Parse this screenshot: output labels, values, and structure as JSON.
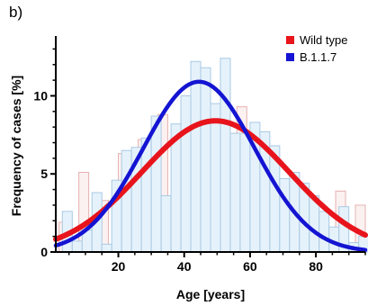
{
  "panel_label": "b)",
  "chart_data": {
    "type": "bar",
    "title": "",
    "xlabel": "Age [years]",
    "ylabel": "Frequency of cases [%]",
    "xlim": [
      1,
      95
    ],
    "ylim": [
      0,
      13.6
    ],
    "xticks": [
      20,
      40,
      60,
      80
    ],
    "yticks": [
      0,
      5,
      10
    ],
    "legend_position": "top-right",
    "bin_width": 3,
    "series": [
      {
        "name": "Wild type",
        "color": "#e8141c",
        "bar_fill": "#fbf1f1",
        "bar_stroke": "#e7b1b1",
        "bin_centers": [
          3.5,
          9.5,
          15.5,
          21.5,
          27.5,
          33.5,
          39.5,
          45.5,
          51.5,
          57.5,
          63.5,
          69.5,
          75.5,
          81.5,
          87.5,
          93.5
        ],
        "values": [
          1.9,
          5.1,
          3.3,
          6.3,
          7.2,
          8.8,
          7.5,
          9.3,
          6.7,
          9.3,
          4.3,
          4.3,
          4.0,
          0.9,
          3.9,
          3.0
        ],
        "fit": {
          "mu": 49.5,
          "sigma": 22.5,
          "amplitude": 8.4
        }
      },
      {
        "name": "B.1.1.7",
        "color": "#1414d2",
        "bar_fill": "#e6f2fb",
        "bar_stroke": "#a9c9e3",
        "bin_centers": [
          4.5,
          7.5,
          10.5,
          13.5,
          16.5,
          19.5,
          22.5,
          25.5,
          28.5,
          31.5,
          34.5,
          37.5,
          40.5,
          43.5,
          46.5,
          49.5,
          52.5,
          55.5,
          58.5,
          61.5,
          64.5,
          67.5,
          70.5,
          73.5,
          76.5,
          79.5,
          82.5,
          85.5,
          88.5,
          91.5,
          94.5
        ],
        "values": [
          2.6,
          0.7,
          1.4,
          3.8,
          0.5,
          4.6,
          6.5,
          6.7,
          7.3,
          8.7,
          3.6,
          8.2,
          10.0,
          12.2,
          11.8,
          9.5,
          12.4,
          7.6,
          7.6,
          8.3,
          7.7,
          6.8,
          4.7,
          5.1,
          4.4,
          3.6,
          2.6,
          1.6,
          2.9,
          0.6,
          1.0
        ],
        "fit": {
          "mu": 44.5,
          "sigma": 17.0,
          "amplitude": 10.9
        }
      }
    ]
  }
}
